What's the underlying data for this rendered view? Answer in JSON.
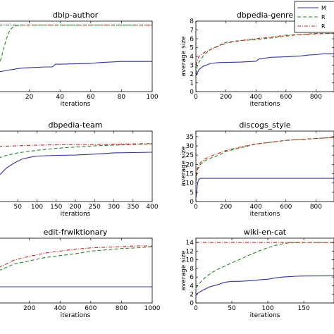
{
  "chart_data": [
    {
      "type": "line",
      "title": "dblp-author",
      "xlabel": "iterations",
      "ylabel": "",
      "xlim": [
        0,
        100
      ],
      "ylim": [
        0,
        9
      ],
      "xticks": [
        20,
        40,
        60,
        80,
        100
      ],
      "yticks": [],
      "series": [
        {
          "color": "#3333aa",
          "dash": "solid",
          "x": [
            0,
            5,
            10,
            15,
            20,
            25,
            30,
            35,
            37,
            40,
            50,
            60,
            65,
            70,
            75,
            80,
            90,
            100
          ],
          "y": [
            2.5,
            2.7,
            2.85,
            3.0,
            3.05,
            3.1,
            3.15,
            3.15,
            3.5,
            3.5,
            3.55,
            3.6,
            3.7,
            3.75,
            3.8,
            3.85,
            3.85,
            3.85
          ]
        },
        {
          "color": "#228822",
          "dash": "dash",
          "x": [
            0,
            2,
            4,
            6,
            8,
            10,
            12,
            15,
            20,
            40,
            60,
            80,
            100
          ],
          "y": [
            3.2,
            4.5,
            6.0,
            7.3,
            8.0,
            8.3,
            8.45,
            8.5,
            8.5,
            8.5,
            8.5,
            8.5,
            8.5
          ]
        },
        {
          "color": "#cc2222",
          "dash": "dashdot",
          "x": [
            0,
            100
          ],
          "y": [
            8.5,
            8.5
          ]
        }
      ]
    },
    {
      "type": "line",
      "title": "dbpedia-genre",
      "xlabel": "iterations",
      "ylabel": "average size",
      "xlim": [
        0,
        920
      ],
      "ylim": [
        0,
        8
      ],
      "xticks": [
        0,
        200,
        400,
        600,
        800
      ],
      "yticks": [
        0,
        1,
        2,
        3,
        4,
        5,
        6,
        7,
        8
      ],
      "series": [
        {
          "color": "#3333aa",
          "dash": "solid",
          "x": [
            0,
            20,
            50,
            100,
            150,
            300,
            400,
            420,
            500,
            600,
            700,
            750,
            800,
            850,
            920
          ],
          "y": [
            1.8,
            2.5,
            2.9,
            3.2,
            3.3,
            3.35,
            3.45,
            3.7,
            3.9,
            3.95,
            4.05,
            4.15,
            4.2,
            4.3,
            4.3
          ]
        },
        {
          "color": "#228822",
          "dash": "dash",
          "x": [
            0,
            10,
            30,
            60,
            100,
            150,
            200,
            300,
            400,
            500,
            600,
            700,
            800,
            920
          ],
          "y": [
            2.0,
            3.0,
            3.6,
            4.3,
            4.8,
            5.2,
            5.6,
            5.8,
            5.9,
            6.1,
            6.3,
            6.5,
            6.6,
            6.6
          ]
        },
        {
          "color": "#cc2222",
          "dash": "dashdot",
          "x": [
            0,
            20,
            60,
            100,
            200,
            300,
            400,
            500,
            600,
            700,
            800,
            920
          ],
          "y": [
            3.0,
            4.0,
            4.5,
            4.8,
            5.5,
            5.8,
            6.0,
            6.2,
            6.4,
            6.5,
            6.55,
            6.6
          ]
        }
      ]
    },
    {
      "type": "line",
      "title": "dbpedia-team",
      "xlabel": "iterations",
      "ylabel": "",
      "xlim": [
        0,
        400
      ],
      "ylim": [
        0,
        11
      ],
      "xticks": [
        50,
        100,
        150,
        200,
        250,
        300,
        350,
        400
      ],
      "yticks": [],
      "series": [
        {
          "color": "#3333aa",
          "dash": "solid",
          "x": [
            0,
            20,
            40,
            60,
            80,
            100,
            150,
            200,
            250,
            300,
            350,
            400
          ],
          "y": [
            4.0,
            5.2,
            6.0,
            6.6,
            6.9,
            7.1,
            7.2,
            7.25,
            7.4,
            7.6,
            7.65,
            7.7
          ]
        },
        {
          "color": "#228822",
          "dash": "dash",
          "x": [
            0,
            20,
            50,
            100,
            150,
            200,
            250,
            300,
            350,
            400
          ],
          "y": [
            6.8,
            7.2,
            7.6,
            8.0,
            8.3,
            8.5,
            8.7,
            8.8,
            8.9,
            9.0
          ]
        },
        {
          "color": "#cc2222",
          "dash": "dashdot",
          "x": [
            0,
            50,
            100,
            150,
            200,
            250,
            300,
            350,
            400
          ],
          "y": [
            8.6,
            8.7,
            8.8,
            8.85,
            8.9,
            8.9,
            8.95,
            9.0,
            9.05
          ]
        }
      ]
    },
    {
      "type": "line",
      "title": "discogs_style",
      "xlabel": "iterations",
      "ylabel": "average size",
      "xlim": [
        0,
        920
      ],
      "ylim": [
        0,
        38
      ],
      "xticks": [
        0,
        200,
        400,
        600,
        800
      ],
      "yticks": [
        0,
        5,
        10,
        15,
        20,
        25,
        30,
        35
      ],
      "series": [
        {
          "color": "#3333aa",
          "dash": "solid",
          "x": [
            0,
            5,
            10,
            15,
            20,
            30,
            920
          ],
          "y": [
            2,
            5,
            9,
            11,
            12,
            12.5,
            12.5
          ]
        },
        {
          "color": "#228822",
          "dash": "dash",
          "x": [
            0,
            10,
            30,
            60,
            100,
            150,
            200,
            300,
            400,
            500,
            600,
            700,
            800,
            920
          ],
          "y": [
            11,
            17,
            20,
            22,
            23.5,
            25,
            27,
            29,
            31,
            32,
            33,
            33.5,
            34,
            34.5
          ]
        },
        {
          "color": "#cc2222",
          "dash": "dashdot",
          "x": [
            0,
            10,
            30,
            60,
            100,
            150,
            200,
            300,
            400,
            500,
            600,
            700,
            800,
            920
          ],
          "y": [
            13,
            18,
            21,
            23,
            24.5,
            26,
            27.5,
            29.5,
            31,
            32,
            33,
            33.5,
            34,
            34.5
          ]
        }
      ]
    },
    {
      "type": "line",
      "title": "edit-frwiktionary",
      "xlabel": "iterations",
      "ylabel": "",
      "xlim": [
        0,
        1000
      ],
      "ylim": [
        0,
        10
      ],
      "xticks": [
        200,
        400,
        600,
        800,
        1000
      ],
      "yticks": [],
      "series": [
        {
          "color": "#3333aa",
          "dash": "solid",
          "x": [
            0,
            1000
          ],
          "y": [
            2.5,
            2.5
          ]
        },
        {
          "color": "#228822",
          "dash": "dash",
          "x": [
            0,
            50,
            100,
            200,
            300,
            400,
            500,
            600,
            700,
            800,
            900,
            1000
          ],
          "y": [
            5.0,
            5.5,
            6.0,
            6.5,
            7.0,
            7.3,
            7.6,
            8.0,
            8.2,
            8.4,
            8.5,
            8.7
          ]
        },
        {
          "color": "#cc2222",
          "dash": "dashdot",
          "x": [
            0,
            50,
            100,
            200,
            300,
            400,
            500,
            600,
            700,
            800,
            900,
            1000
          ],
          "y": [
            5.5,
            6.0,
            6.6,
            7.2,
            7.7,
            8.0,
            8.3,
            8.5,
            8.6,
            8.7,
            8.8,
            8.8
          ]
        }
      ]
    },
    {
      "type": "line",
      "title": "wiki-en-cat",
      "xlabel": "iterations",
      "ylabel": "average size",
      "xlim": [
        0,
        192
      ],
      "ylim": [
        0,
        15
      ],
      "xticks": [
        0,
        50,
        100,
        150
      ],
      "yticks": [
        0,
        2,
        4,
        6,
        8,
        10,
        12,
        14
      ],
      "series": [
        {
          "color": "#3333aa",
          "dash": "solid",
          "x": [
            0,
            5,
            10,
            20,
            30,
            40,
            50,
            60,
            70,
            80,
            90,
            100,
            110,
            120,
            130,
            140,
            150,
            192
          ],
          "y": [
            2.0,
            2.5,
            3.0,
            3.8,
            4.2,
            4.8,
            5.0,
            5.0,
            5.1,
            5.2,
            5.4,
            5.5,
            5.8,
            6.0,
            6.1,
            6.2,
            6.25,
            6.3
          ]
        },
        {
          "color": "#228822",
          "dash": "dash",
          "x": [
            0,
            5,
            10,
            20,
            30,
            40,
            50,
            60,
            70,
            80,
            90,
            100,
            110,
            120,
            130,
            150,
            192
          ],
          "y": [
            3.5,
            4.5,
            5.5,
            6.8,
            7.8,
            8.5,
            9.3,
            10.0,
            10.8,
            11.5,
            12.2,
            12.8,
            13.3,
            13.7,
            13.9,
            14.0,
            14.0
          ]
        },
        {
          "color": "#cc2222",
          "dash": "dashdot",
          "x": [
            0,
            192
          ],
          "y": [
            14.0,
            14.0
          ]
        }
      ]
    }
  ],
  "legend": {
    "entries": [
      {
        "label": "M",
        "color": "#3333aa",
        "dash": "solid"
      },
      {
        "label": "R",
        "color": "#228822",
        "dash": "dash"
      },
      {
        "label": "R",
        "color": "#cc2222",
        "dash": "dashdot"
      }
    ],
    "placement": "top-right"
  }
}
